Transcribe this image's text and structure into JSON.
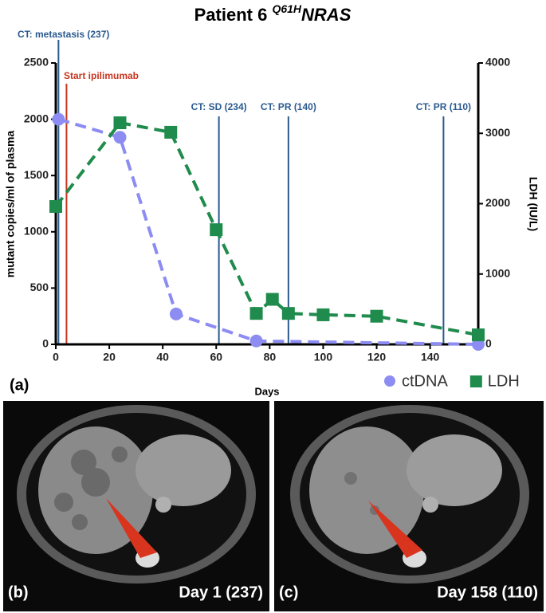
{
  "chart_data": {
    "type": "line",
    "title": "Patient 6",
    "title_superscript": "Q61H",
    "title_gene": "NRAS",
    "panel_label": "(a)",
    "xlabel": "Days",
    "ylabel": "mutant copies/ml of plasma",
    "y2label": "LDH (IU/L)",
    "xlim": [
      0,
      158
    ],
    "xticks": [
      0,
      20,
      40,
      60,
      80,
      100,
      120,
      140
    ],
    "ylim": [
      0,
      2500
    ],
    "yticks": [
      0,
      500,
      1000,
      1500,
      2000,
      2500
    ],
    "y2lim": [
      0,
      4000
    ],
    "y2ticks": [
      0,
      1000,
      2000,
      3000,
      4000
    ],
    "series": [
      {
        "name": "ctDNA",
        "color": "#8c8cf2",
        "marker": "circle",
        "x": [
          1,
          24,
          45,
          75,
          158
        ],
        "values": [
          2000,
          1840,
          270,
          30,
          0
        ]
      },
      {
        "name": "LDH",
        "color": "#1f8b4c",
        "marker": "square",
        "axis": "y2",
        "x": [
          0,
          24,
          43,
          60,
          75,
          81,
          87,
          100,
          120,
          158
        ],
        "values": [
          1960,
          3150,
          3015,
          1630,
          440,
          640,
          440,
          420,
          400,
          135
        ]
      }
    ],
    "events": [
      {
        "label": "CT: metastasis (237)",
        "x": 1,
        "color": "#2a5a8f"
      },
      {
        "label": "Start ipilimumab",
        "x": 4,
        "color": "#c8361f"
      },
      {
        "label": "CT: SD (234)",
        "x": 61,
        "color": "#2a5a8f"
      },
      {
        "label": "CT: PR (140)",
        "x": 87,
        "color": "#2a5a8f"
      },
      {
        "label": "CT: PR (110)",
        "x": 145,
        "color": "#2a5a8f"
      }
    ],
    "legend": "bottom-right"
  },
  "images": [
    {
      "panel_label": "(b)",
      "caption": "Day 1 (237)"
    },
    {
      "panel_label": "(c)",
      "caption": "Day 158 (110)"
    }
  ]
}
